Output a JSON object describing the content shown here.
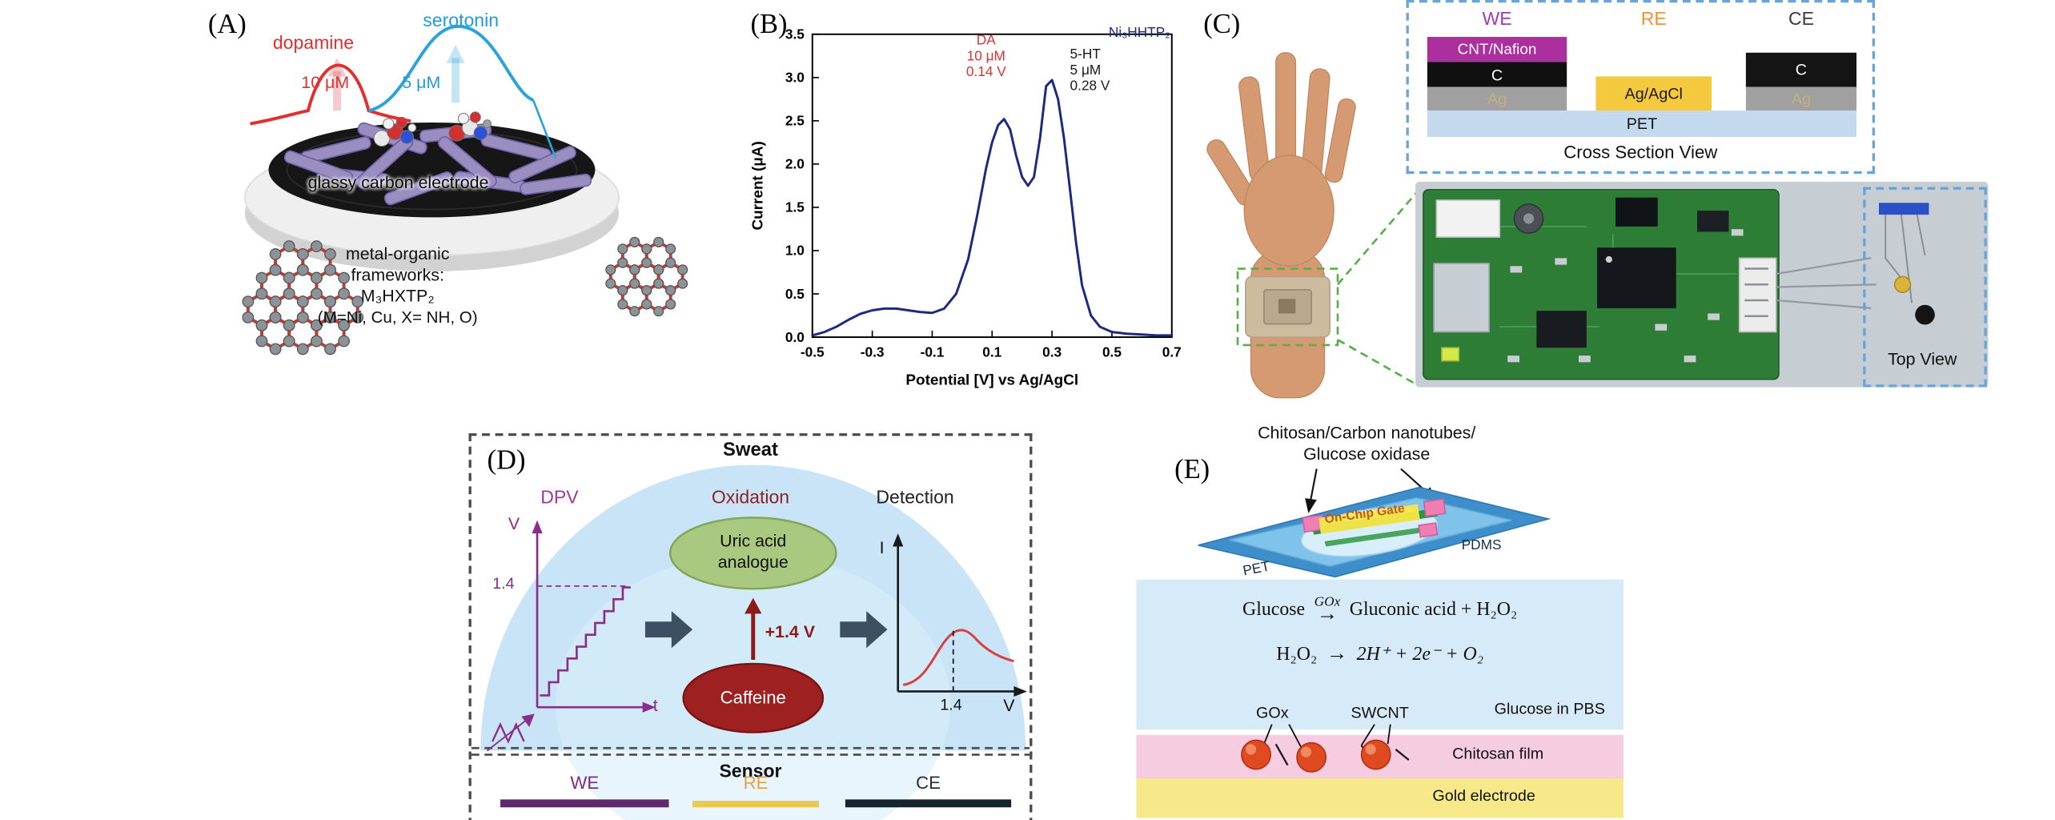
{
  "panelA": {
    "label": "(A)",
    "dopamine_label": "dopamine",
    "dopamine_conc": "10 μM",
    "serotonin_label": "serotonin",
    "serotonin_conc": "5 μM",
    "electrode_label": "glassy carbon electrode",
    "mof_caption_line1": "metal-organic",
    "mof_caption_line2": "frameworks:",
    "mof_formula": "M₃HXTP₂",
    "mof_note": "(M=Ni, Cu, X= NH, O)"
  },
  "panelB": {
    "label": "(B)"
  },
  "chart_data": {
    "type": "line",
    "title": "Ni₃HHTP₂",
    "xlabel": "Potential [V] vs Ag/AgCl",
    "ylabel": "Current (μA)",
    "xlim": [
      -0.5,
      0.7
    ],
    "ylim": [
      0.0,
      3.5
    ],
    "xticks": [
      "-0.5",
      "-0.3",
      "-0.1",
      "0.1",
      "0.3",
      "0.5",
      "0.7"
    ],
    "yticks": [
      "0.0",
      "0.5",
      "1.0",
      "1.5",
      "2.0",
      "2.5",
      "3.0",
      "3.5"
    ],
    "grid": false,
    "legend": "none",
    "series": [
      {
        "name": "Ni₃HHTP₂ DPV",
        "color": "#1b2a7e",
        "x": [
          -0.5,
          -0.46,
          -0.42,
          -0.38,
          -0.34,
          -0.3,
          -0.26,
          -0.22,
          -0.18,
          -0.14,
          -0.1,
          -0.06,
          -0.02,
          0.02,
          0.05,
          0.08,
          0.1,
          0.12,
          0.14,
          0.16,
          0.18,
          0.2,
          0.22,
          0.24,
          0.26,
          0.28,
          0.3,
          0.32,
          0.34,
          0.36,
          0.38,
          0.4,
          0.43,
          0.46,
          0.5,
          0.55,
          0.6,
          0.65,
          0.7
        ],
        "y": [
          0.02,
          0.06,
          0.12,
          0.2,
          0.27,
          0.31,
          0.33,
          0.33,
          0.31,
          0.29,
          0.28,
          0.33,
          0.5,
          0.9,
          1.4,
          1.95,
          2.25,
          2.45,
          2.52,
          2.4,
          2.1,
          1.85,
          1.75,
          1.85,
          2.3,
          2.9,
          2.97,
          2.75,
          2.3,
          1.7,
          1.1,
          0.6,
          0.25,
          0.12,
          0.06,
          0.04,
          0.03,
          0.02,
          0.02
        ]
      }
    ],
    "peaks": [
      {
        "analyte": "DA",
        "concentration": "10 μM",
        "potential_V": 0.14,
        "current_uA": 2.5
      },
      {
        "analyte": "5-HT",
        "concentration": "5 μM",
        "potential_V": 0.28,
        "current_uA": 3.0
      }
    ],
    "annotations": [
      {
        "lines": [
          "DA",
          "10 μM",
          "0.14 V"
        ],
        "x": 0.08,
        "y": 3.38,
        "color": "#e03030",
        "anchor": "middle"
      },
      {
        "lines": [
          "5-HT",
          "5 μM",
          "0.28 V"
        ],
        "x": 0.36,
        "y": 3.22,
        "color": "#1a1a1a",
        "anchor": "start"
      },
      {
        "lines": [
          "Ni₃HHTP₂"
        ],
        "x": 0.695,
        "y": 3.47,
        "color": "#1b2a7e",
        "anchor": "end"
      }
    ]
  },
  "panelC": {
    "label": "(C)",
    "we_label": "WE",
    "re_label": "RE",
    "ce_label": "CE",
    "layer_cnt_nafion": "CNT/Nafion",
    "layer_c_we": "C",
    "layer_ag_we": "Ag",
    "layer_agagcl": "Ag/AgCl",
    "layer_c_ce": "C",
    "layer_ag_ce": "Ag",
    "layer_pet": "PET",
    "cross_section_caption": "Cross Section View",
    "top_view_caption": "Top View"
  },
  "panelD": {
    "label": "(D)",
    "title": "Sweat",
    "step1": "DPV",
    "step2": "Oxidation",
    "step3": "Detection",
    "v_axis": "V",
    "t_axis": "t",
    "step_level": "1.4",
    "analyte_line1": "Uric acid",
    "analyte_line2": "analogue",
    "potential": "+1.4 V",
    "interferent": "Caffeine",
    "i_axis": "I",
    "peak_potential": "1.4",
    "x_unit": "V",
    "sensor_title": "Sensor",
    "we_label": "WE",
    "re_label": "RE",
    "ce_label": "CE"
  },
  "panelE": {
    "label": "(E)",
    "callout_line1": "Chitosan/Carbon nanotubes/",
    "callout_line2": "Glucose oxidase",
    "gate_label": "On-Chip Gate",
    "pdms_label": "PDMS",
    "pet_label": "PET",
    "eq1_left": "Glucose",
    "eq1_over": "GOx",
    "eq1_arrow": "→",
    "eq1_right": "Gluconic acid + H₂O₂",
    "eq2_left": "H₂O₂",
    "eq2_arrow": "→",
    "eq2_right": "2H⁺ + 2e⁻ + O₂",
    "medium_label": "Glucose in PBS",
    "gox_label": "GOx",
    "swcnt_label": "SWCNT",
    "chitosan_label": "Chitosan film",
    "gold_label": "Gold electrode"
  }
}
